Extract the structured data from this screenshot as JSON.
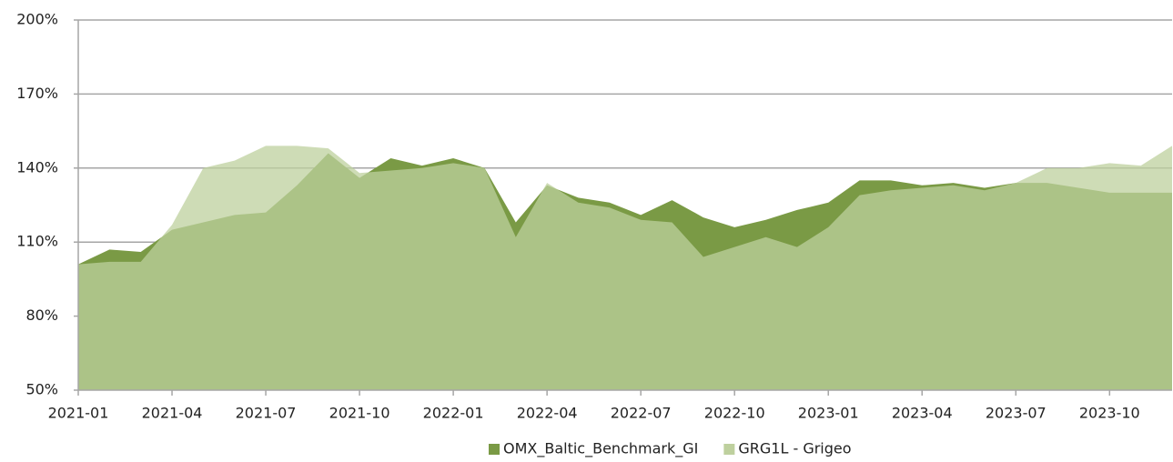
{
  "chart_data": {
    "type": "area",
    "x": [
      "2021-01",
      "2021-02",
      "2021-03",
      "2021-04",
      "2021-05",
      "2021-06",
      "2021-07",
      "2021-08",
      "2021-09",
      "2021-10",
      "2021-11",
      "2021-12",
      "2022-01",
      "2022-02",
      "2022-03",
      "2022-04",
      "2022-05",
      "2022-06",
      "2022-07",
      "2022-08",
      "2022-09",
      "2022-10",
      "2022-11",
      "2022-12",
      "2023-01",
      "2023-02",
      "2023-03",
      "2023-04",
      "2023-05",
      "2023-06",
      "2023-07",
      "2023-08",
      "2023-09",
      "2023-10",
      "2023-11",
      "2023-12"
    ],
    "series": [
      {
        "name": "OMX_Baltic_Benchmark_GI",
        "color": "#7a9a45",
        "values": [
          101,
          107,
          106,
          115,
          118,
          121,
          122,
          133,
          146,
          136,
          144,
          141,
          144,
          140,
          118,
          133,
          128,
          126,
          121,
          127,
          120,
          116,
          119,
          123,
          126,
          135,
          135,
          133,
          134,
          132,
          134,
          134,
          132,
          130,
          130,
          130
        ]
      },
      {
        "name": "GRG1L - Grigeo",
        "color": "#bed09e",
        "values": [
          101,
          102,
          102,
          117,
          140,
          143,
          149,
          149,
          148,
          138,
          139,
          140,
          142,
          140,
          112,
          134,
          126,
          124,
          119,
          118,
          104,
          108,
          112,
          108,
          116,
          129,
          131,
          132,
          133,
          131,
          134,
          140,
          140,
          142,
          141,
          149
        ]
      }
    ],
    "xticks": [
      "2021-01",
      "2021-04",
      "2021-07",
      "2021-10",
      "2022-01",
      "2022-04",
      "2022-07",
      "2022-10",
      "2023-01",
      "2023-04",
      "2023-07",
      "2023-10"
    ],
    "ylim": [
      50,
      200
    ],
    "yticks": [
      {
        "value": 50,
        "label": "50%"
      },
      {
        "value": 80,
        "label": "80%"
      },
      {
        "value": 110,
        "label": "110%"
      },
      {
        "value": 140,
        "label": "140%"
      },
      {
        "value": 170,
        "label": "170%"
      },
      {
        "value": 200,
        "label": "200%"
      }
    ],
    "grid": true,
    "legend": "bottom"
  }
}
